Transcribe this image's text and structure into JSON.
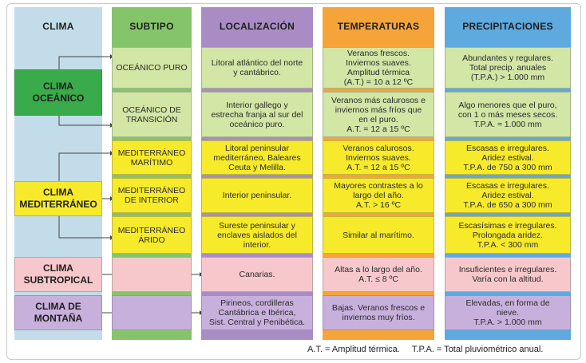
{
  "headers": {
    "clima": "CLIMA",
    "subtipo": "SUBTIPO",
    "localizacion": "LOCALIZACIÓN",
    "temperaturas": "TEMPERATURAS",
    "precipitaciones": "PRECIPITACIONES"
  },
  "climas": [
    {
      "label": "CLIMA\nOCEÁNICO",
      "color": "#3aab4a"
    },
    {
      "label": "CLIMA\nMEDITERRÁNEO",
      "color": "#f7ea2a"
    },
    {
      "label": "CLIMA\nSUBTROPICAL",
      "color": "#f6c8cc"
    },
    {
      "label": "CLIMA DE\nMONTAÑA",
      "color": "#c8b0dc"
    }
  ],
  "rows": [
    {
      "subtipo": "OCEÁNICO PURO",
      "localizacion": "Litoral atlántico del norte\ny cantábrico.",
      "temperaturas": "Veranos frescos.\nInviernos suaves.\nAmplitud térmica\n(A.T.) = 10 a 12 ºC",
      "precipitaciones": "Abundantes y regulares.\nTotal precip. anuales\n(T.P.A.) > 1.000 mm",
      "color": "#d2e6a6"
    },
    {
      "subtipo": "OCEÁNICO DE\nTRANSICIÓN",
      "localizacion": "Interior gallego y\nestrecha franja al sur del\noceánico puro.",
      "temperaturas": "Veranos más calurosos e\ninviernos más fríos que\nen el puro.\nA.T. = 12 a 15 ºC",
      "precipitaciones": "Algo menores que el puro,\ncon 1 o más meses secos.\nT.P.A. ≈ 1.000 mm",
      "color": "#d2e6a6"
    },
    {
      "subtipo": "MEDITERRÁNEO\nMARÍTIMO",
      "localizacion": "Litoral peninsular\nmediterráneo, Baleares\nCeuta y Melilla.",
      "temperaturas": "Veranos calurosos.\nInviernos suaves.\nA.T. = 12 a 15 ºC",
      "precipitaciones": "Escasas e irregulares.\nAridez estival.\nT.P.A. de 750 a 300 mm",
      "color": "#f7ea2a"
    },
    {
      "subtipo": "MEDITERRÁNEO\nDE INTERIOR",
      "localizacion": "Interior peninsular.",
      "temperaturas": "Mayores contrastes a lo\nlargo del año.\nA.T. > 16 ºC",
      "precipitaciones": "Escasas e irregulares.\nAridez estival.\nT.P.A. de 650 a 300 mm",
      "color": "#f7ea2a"
    },
    {
      "subtipo": "MEDITERRÁNEO\nÁRIDO",
      "localizacion": "Sureste peninsular y\nenclaves aislados del\ninterior.",
      "temperaturas": "Similar al marítimo.",
      "precipitaciones": "Escasísimas e irregulares.\nProlongada aridez.\nT.P.A. < 300 mm",
      "color": "#f7ea2a"
    },
    {
      "subtipo": "",
      "localizacion": "Canarias.",
      "temperaturas": "Altas a lo largo del año.\nA.T. ≤ 8 ºC",
      "precipitaciones": "Insuficientes e irregulares.\nVaría con la altitud.",
      "color": "#f6c8cc"
    },
    {
      "subtipo": "",
      "localizacion": "Pirineos, cordilleras\nCantábrica e Ibérica,\nSist. Central y Penibética.",
      "temperaturas": "Bajas. Veranos frescos e\ninviernos muy fríos.",
      "precipitaciones": "Elevadas, en forma de\nnieve.\nT.P.A. > 1.000 mm",
      "color": "#c8b0dc"
    }
  ],
  "colors": {
    "clima_header": "#c3dce9",
    "subtipo_header": "#86c46c",
    "localizacion_header": "#a98cc4",
    "temperaturas_header": "#f5a43a",
    "precipitaciones_header": "#5ea9dd"
  },
  "footer": "A.T. = Amplitud térmica.     T.P.A. = Total pluviométrico anual."
}
